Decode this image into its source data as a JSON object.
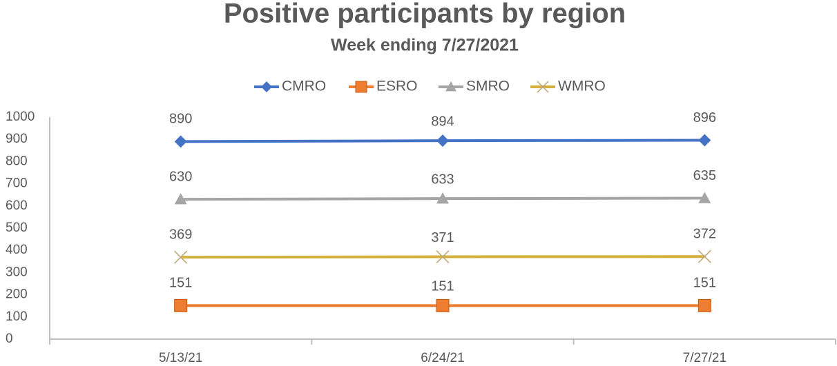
{
  "chart_data": {
    "type": "line",
    "title": "Positive participants by region",
    "subtitle": "Week ending 7/27/2021",
    "categories": [
      "5/13/21",
      "6/24/21",
      "7/27/21"
    ],
    "series": [
      {
        "name": "CMRO",
        "color": "#4472c4",
        "marker": "diamond",
        "values": [
          890,
          894,
          896
        ]
      },
      {
        "name": "ESRO",
        "color": "#ed7d31",
        "marker": "square",
        "values": [
          151,
          151,
          151
        ]
      },
      {
        "name": "SMRO",
        "color": "#a5a5a5",
        "marker": "triangle",
        "values": [
          630,
          633,
          635
        ]
      },
      {
        "name": "WMRO",
        "color": "#d4b13c",
        "marker": "x",
        "values": [
          369,
          371,
          372
        ]
      }
    ],
    "ylim": [
      0,
      1000
    ],
    "yticks": [
      0,
      100,
      200,
      300,
      400,
      500,
      600,
      700,
      800,
      900,
      1000
    ],
    "grid": false,
    "legend": "top"
  }
}
